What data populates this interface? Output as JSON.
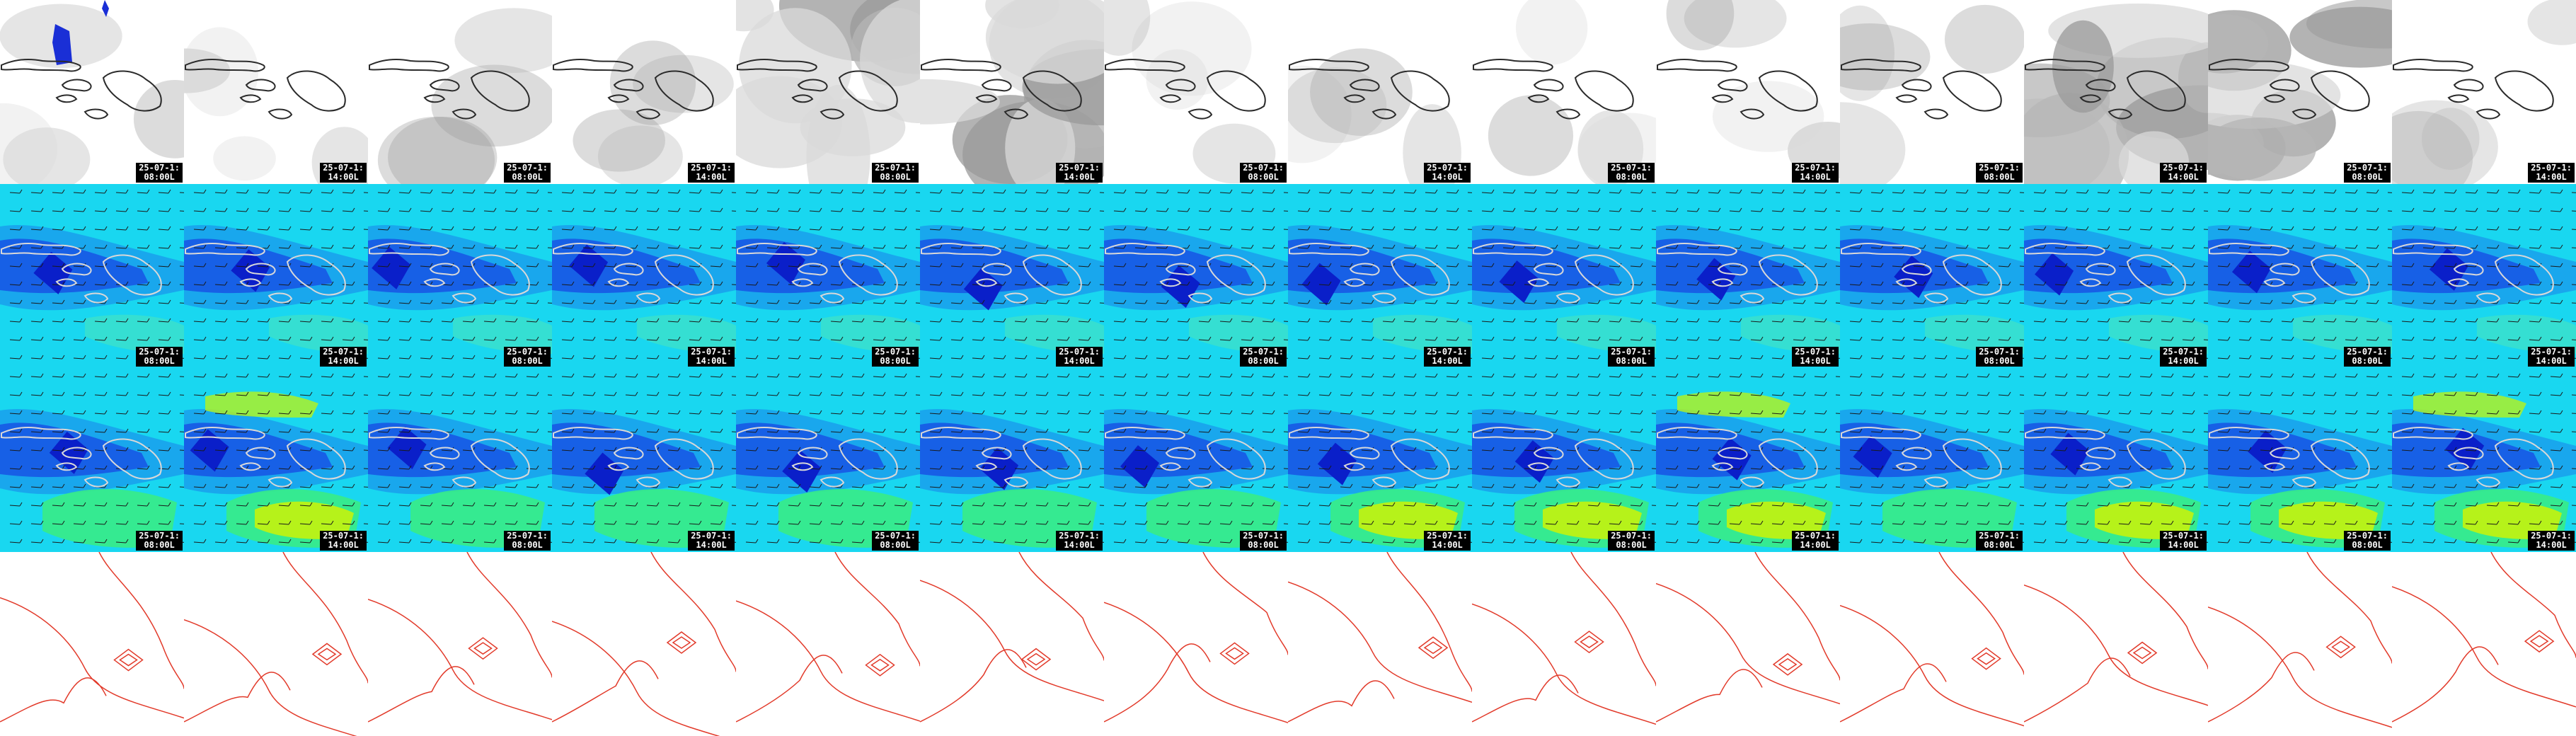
{
  "page": {
    "background": "#ffffff",
    "island_outline_color": "#2b2b2b",
    "contour_color": "#e23a2a",
    "timestamp_bg": "#000000",
    "timestamp_fg": "#ffffff",
    "wind_arrow_icon": "wind-barb-icon"
  },
  "rows": [
    {
      "id": "cloud",
      "palette": [
        "#ffffff",
        "#d9d9d9",
        "#b5b5b5",
        "#9a9a9a"
      ],
      "accent": "#1a2fd6",
      "tiles": [
        {
          "date": "25-07-1:",
          "time": "08:00L"
        },
        {
          "date": "25-07-1:",
          "time": "14:00L"
        },
        {
          "date": "25-07-1:",
          "time": "08:00L"
        },
        {
          "date": "25-07-1:",
          "time": "14:00L"
        },
        {
          "date": "25-07-1:",
          "time": "08:00L"
        },
        {
          "date": "25-07-1:",
          "time": "14:00L"
        },
        {
          "date": "25-07-1:",
          "time": "08:00L"
        },
        {
          "date": "25-07-1:",
          "time": "14:00L"
        },
        {
          "date": "25-07-1:",
          "time": "08:00L"
        },
        {
          "date": "25-07-1:",
          "time": "14:00L"
        },
        {
          "date": "25-07-1:",
          "time": "08:00L"
        },
        {
          "date": "25-07-1:",
          "time": "14:00L"
        },
        {
          "date": "25-07-1:",
          "time": "08:00L"
        },
        {
          "date": "25-07-1:",
          "time": "14:00L"
        }
      ]
    },
    {
      "id": "wind-surface",
      "palette": [
        "#19d7f0",
        "#1aa2ec",
        "#1760e6",
        "#0a1fc9",
        "#52e8b4"
      ],
      "tiles": [
        {
          "date": "25-07-1:",
          "time": "08:00L"
        },
        {
          "date": "25-07-1:",
          "time": "14:00L"
        },
        {
          "date": "25-07-1:",
          "time": "08:00L"
        },
        {
          "date": "25-07-1:",
          "time": "14:00L"
        },
        {
          "date": "25-07-1:",
          "time": "08:00L"
        },
        {
          "date": "25-07-1:",
          "time": "14:00L"
        },
        {
          "date": "25-07-1:",
          "time": "08:00L"
        },
        {
          "date": "25-07-1:",
          "time": "14:00L"
        },
        {
          "date": "25-07-1:",
          "time": "08:00L"
        },
        {
          "date": "25-07-1:",
          "time": "14:00L"
        },
        {
          "date": "25-07-1:",
          "time": "08:00L"
        },
        {
          "date": "25-07-1:",
          "time": "14:00L"
        },
        {
          "date": "25-07-1:",
          "time": "08:00L"
        },
        {
          "date": "25-07-1:",
          "time": "14:00L"
        }
      ]
    },
    {
      "id": "wind-upper",
      "palette": [
        "#19d7f0",
        "#1aa2ec",
        "#1760e6",
        "#0a1fc9",
        "#38ec86",
        "#b6f21a"
      ],
      "tiles": [
        {
          "date": "25-07-1:",
          "time": "08:00L"
        },
        {
          "date": "25-07-1:",
          "time": "14:00L"
        },
        {
          "date": "25-07-1:",
          "time": "08:00L"
        },
        {
          "date": "25-07-1:",
          "time": "14:00L"
        },
        {
          "date": "25-07-1:",
          "time": "08:00L"
        },
        {
          "date": "25-07-1:",
          "time": "14:00L"
        },
        {
          "date": "25-07-1:",
          "time": "08:00L"
        },
        {
          "date": "25-07-1:",
          "time": "14:00L"
        },
        {
          "date": "25-07-1:",
          "time": "08:00L"
        },
        {
          "date": "25-07-1:",
          "time": "14:00L"
        },
        {
          "date": "25-07-1:",
          "time": "08:00L"
        },
        {
          "date": "25-07-1:",
          "time": "14:00L"
        },
        {
          "date": "25-07-1:",
          "time": "08:00L"
        },
        {
          "date": "25-07-1:",
          "time": "14:00L"
        }
      ]
    },
    {
      "id": "pressure-contours",
      "palette": [
        "#ffffff",
        "#e23a2a"
      ],
      "tiles": [
        {},
        {},
        {},
        {},
        {},
        {},
        {},
        {},
        {},
        {},
        {},
        {},
        {},
        {}
      ]
    }
  ]
}
